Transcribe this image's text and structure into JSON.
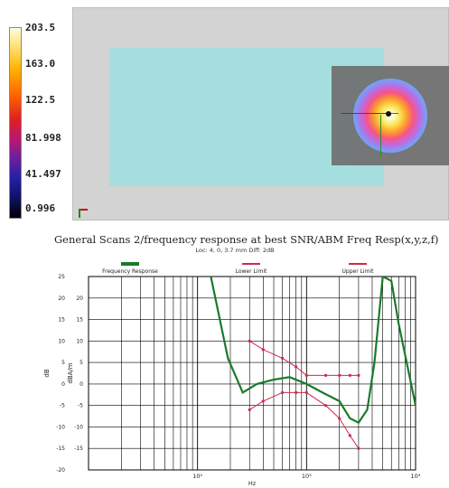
{
  "colorbar": {
    "labels": [
      "203.5",
      "163.0",
      "122.5",
      "81.998",
      "41.497",
      "0.996"
    ]
  },
  "scene": {
    "description_icon": "sar-hotspot-view"
  },
  "chart_data": {
    "type": "line",
    "title": "General Scans 2/frequency response at best SNR/ABM Freq Resp(x,y,z,f)",
    "subtitle": "Loc: 4, 0, 3.7 mm Diff: 2dB",
    "xlabel": "Hz",
    "ylabel_left": "dB",
    "ylabel_right": "dBA/m",
    "xscale": "log",
    "xlim": [
      10,
      10000
    ],
    "ylim": [
      -20,
      25
    ],
    "x_tick_labels": [
      "10²",
      "10³",
      "10⁴"
    ],
    "y_ticks_left": [
      25,
      20,
      15,
      10,
      5,
      0,
      -5,
      -10,
      -15,
      -20
    ],
    "y_ticks_right": [
      20,
      15,
      10,
      5,
      0,
      -5,
      -10,
      -15
    ],
    "grid": true,
    "legend": [
      "Frequency Response",
      "Lower Limit",
      "Upper Limit"
    ],
    "colors": {
      "frequency_response": "#1a7a2a",
      "limits": "#d02850"
    },
    "series": [
      {
        "name": "Frequency Response",
        "x": [
          130,
          190,
          260,
          350,
          500,
          700,
          1000,
          1400,
          2000,
          2500,
          3000,
          3600,
          4200,
          5000,
          6000,
          7000,
          10000
        ],
        "y": [
          26,
          6,
          -2,
          0,
          1,
          1.6,
          0,
          -2,
          -4,
          -8,
          -9,
          -6,
          5,
          25,
          24,
          14,
          -5
        ]
      },
      {
        "name": "Lower Limit",
        "x": [
          300,
          400,
          600,
          800,
          1000,
          1500,
          2000,
          2500,
          3000
        ],
        "y": [
          -6,
          -4,
          -2,
          -2,
          -2,
          -5,
          -8,
          -12,
          -15
        ]
      },
      {
        "name": "Upper Limit",
        "x": [
          300,
          400,
          600,
          800,
          1000,
          1500,
          2000,
          2500,
          3000
        ],
        "y": [
          10,
          8,
          6,
          4,
          2,
          2,
          2,
          2,
          2
        ]
      }
    ]
  }
}
